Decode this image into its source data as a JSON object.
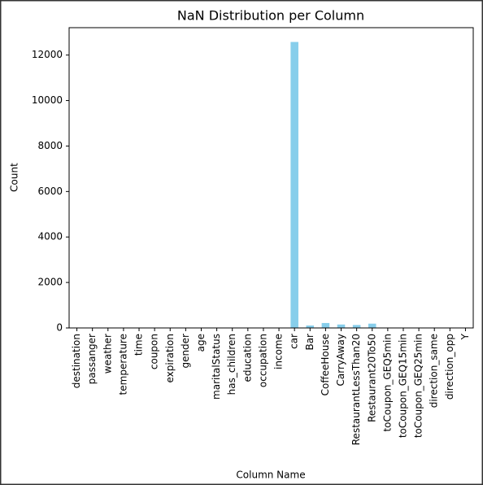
{
  "chart_data": {
    "type": "bar",
    "title": "NaN Distribution per Column",
    "xlabel": "Column Name",
    "ylabel": "Count",
    "categories": [
      "destination",
      "passanger",
      "weather",
      "temperature",
      "time",
      "coupon",
      "expiration",
      "gender",
      "age",
      "maritalStatus",
      "has_children",
      "education",
      "occupation",
      "income",
      "car",
      "Bar",
      "CoffeeHouse",
      "CarryAway",
      "RestaurantLessThan20",
      "Restaurant20To50",
      "toCoupon_GEQ5min",
      "toCoupon_GEQ15min",
      "toCoupon_GEQ25min",
      "direction_same",
      "direction_opp",
      "Y"
    ],
    "values": [
      0,
      0,
      0,
      0,
      0,
      0,
      0,
      0,
      0,
      0,
      0,
      0,
      0,
      0,
      12576,
      107,
      217,
      151,
      130,
      189,
      0,
      0,
      0,
      0,
      0,
      0
    ],
    "color": "#87ceeb",
    "ylim": [
      0,
      13205
    ],
    "yticks": [
      0,
      2000,
      4000,
      6000,
      8000,
      10000,
      12000
    ],
    "grid": false
  }
}
